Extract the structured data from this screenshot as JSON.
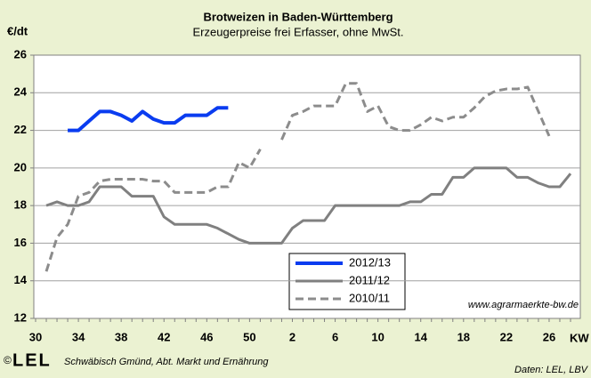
{
  "chart_data": {
    "type": "line",
    "title": "Brotweizen in Baden-Württemberg",
    "subtitle": "Erzeugerpreise frei Erfasser, ohne MwSt.",
    "y_label": "€/dt",
    "x_label": "KW",
    "source_note": "www.agrarmaerkte-bw.de",
    "copyright": "©",
    "logo": "LEL",
    "footer": "Schwäbisch Gmünd, Abt. Markt und Ernährung",
    "data_source": "Daten: LEL, LBV",
    "categories": [
      30,
      null,
      null,
      null,
      34,
      null,
      null,
      null,
      38,
      null,
      null,
      null,
      42,
      null,
      null,
      null,
      46,
      null,
      null,
      null,
      50,
      null,
      null,
      null,
      2,
      null,
      null,
      null,
      6,
      null,
      null,
      null,
      10,
      null,
      null,
      null,
      14,
      null,
      null,
      null,
      18,
      null,
      null,
      null,
      22,
      null,
      null,
      null,
      26,
      null,
      null
    ],
    "series": [
      {
        "name": "2012/13",
        "color": "#0a3cf0",
        "style": "solid",
        "width": 4,
        "values": [
          null,
          null,
          null,
          22,
          22,
          22.5,
          23,
          23,
          22.8,
          22.5,
          23,
          22.6,
          22.4,
          22.4,
          22.8,
          22.8,
          22.8,
          23.2,
          23.2,
          null,
          null,
          null,
          null,
          null,
          null,
          null,
          null,
          null,
          null,
          null,
          null,
          null,
          null,
          null,
          null,
          null,
          null,
          null,
          null,
          null,
          null,
          null,
          null,
          null,
          null,
          null,
          null,
          null,
          null,
          null,
          null
        ]
      },
      {
        "name": "2011/12",
        "color": "#808080",
        "style": "solid",
        "width": 3,
        "values": [
          null,
          18,
          18.2,
          18,
          18,
          18.2,
          19,
          19,
          19,
          18.5,
          18.5,
          18.5,
          17.4,
          17,
          17,
          17,
          17,
          16.8,
          16.5,
          16.2,
          16,
          16,
          16,
          16,
          16.8,
          17.2,
          17.2,
          17.2,
          18,
          18,
          18,
          18,
          18,
          18,
          18,
          18.2,
          18.2,
          18.6,
          18.6,
          19.5,
          19.5,
          20,
          20,
          20,
          20,
          19.5,
          19.5,
          19.2,
          19,
          19,
          19.7
        ]
      },
      {
        "name": "2010/11",
        "color": "#8c8c8c",
        "style": "dashed",
        "width": 3,
        "values": [
          null,
          14.5,
          16.3,
          17,
          18.5,
          18.7,
          19.3,
          19.4,
          19.4,
          19.4,
          19.4,
          19.3,
          19.3,
          18.7,
          18.7,
          18.7,
          18.7,
          19,
          19,
          20.3,
          20,
          21,
          null,
          21.5,
          22.8,
          23,
          23.3,
          23.3,
          23.3,
          24.5,
          24.5,
          23,
          23.3,
          22.2,
          22,
          22,
          22.3,
          22.7,
          22.5,
          22.7,
          22.7,
          23.2,
          23.8,
          24.1,
          24.2,
          24.2,
          24.3,
          23,
          21.7,
          null,
          null
        ]
      }
    ],
    "ylim": [
      12,
      26
    ],
    "yticks": [
      12,
      14,
      16,
      18,
      20,
      22,
      24,
      26
    ],
    "grid": true
  }
}
